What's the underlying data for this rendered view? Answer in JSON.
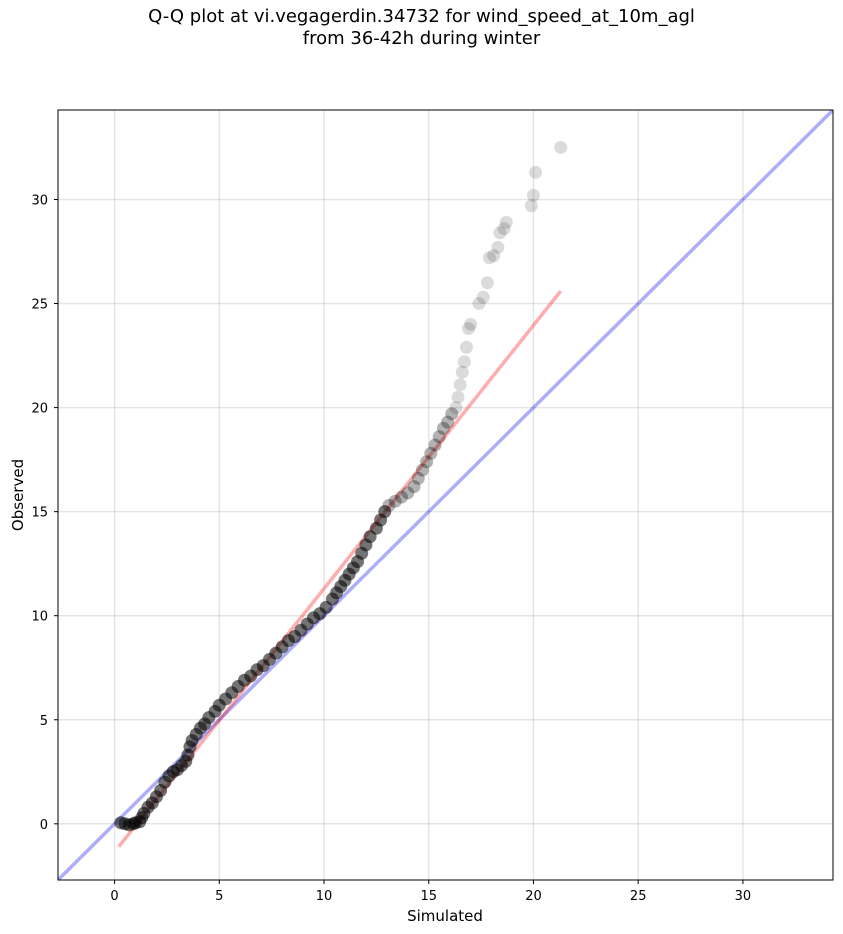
{
  "chart_data": {
    "type": "scatter",
    "title_line1": "Q-Q plot at vi.vegagerdin.34732 for wind_speed_at_10m_agl",
    "title_line2": "from 36-42h during winter",
    "xlabel": "Simulated",
    "ylabel": "Observed",
    "xlim": [
      -2.7,
      34.3
    ],
    "ylim": [
      -2.7,
      34.3
    ],
    "xticks": [
      0,
      5,
      10,
      15,
      20,
      25,
      30
    ],
    "yticks": [
      0,
      5,
      10,
      15,
      20,
      25,
      30
    ],
    "grid": true,
    "identity_line": {
      "color": "#0000ee",
      "opacity": 0.32
    },
    "fit_line": {
      "color": "#ff0000",
      "opacity": 0.32,
      "x": [
        0.2,
        21.3
      ],
      "y": [
        -1.1,
        25.6
      ]
    },
    "points_color": "#000000",
    "points": [
      [
        0.3,
        0.05
      ],
      [
        0.5,
        0.0
      ],
      [
        0.7,
        -0.05
      ],
      [
        0.9,
        0.0
      ],
      [
        1.0,
        0.05
      ],
      [
        1.2,
        0.1
      ],
      [
        1.3,
        0.3
      ],
      [
        1.4,
        0.5
      ],
      [
        1.6,
        0.8
      ],
      [
        1.8,
        1.0
      ],
      [
        2.0,
        1.3
      ],
      [
        2.2,
        1.6
      ],
      [
        2.4,
        2.0
      ],
      [
        2.6,
        2.3
      ],
      [
        2.8,
        2.5
      ],
      [
        3.0,
        2.6
      ],
      [
        3.2,
        2.8
      ],
      [
        3.4,
        3.0
      ],
      [
        3.5,
        3.3
      ],
      [
        3.6,
        3.7
      ],
      [
        3.7,
        4.0
      ],
      [
        3.9,
        4.3
      ],
      [
        4.1,
        4.6
      ],
      [
        4.3,
        4.8
      ],
      [
        4.5,
        5.1
      ],
      [
        4.8,
        5.4
      ],
      [
        5.0,
        5.7
      ],
      [
        5.3,
        6.0
      ],
      [
        5.6,
        6.3
      ],
      [
        5.9,
        6.6
      ],
      [
        6.2,
        6.9
      ],
      [
        6.5,
        7.1
      ],
      [
        6.8,
        7.4
      ],
      [
        7.1,
        7.6
      ],
      [
        7.4,
        7.9
      ],
      [
        7.7,
        8.2
      ],
      [
        8.0,
        8.5
      ],
      [
        8.3,
        8.8
      ],
      [
        8.6,
        9.0
      ],
      [
        8.9,
        9.3
      ],
      [
        9.2,
        9.6
      ],
      [
        9.5,
        9.9
      ],
      [
        9.8,
        10.1
      ],
      [
        10.1,
        10.4
      ],
      [
        10.4,
        10.8
      ],
      [
        10.6,
        11.1
      ],
      [
        10.8,
        11.4
      ],
      [
        11.0,
        11.7
      ],
      [
        11.2,
        12.0
      ],
      [
        11.4,
        12.3
      ],
      [
        11.6,
        12.6
      ],
      [
        11.8,
        13.0
      ],
      [
        12.0,
        13.4
      ],
      [
        12.2,
        13.8
      ],
      [
        12.5,
        14.2
      ],
      [
        12.7,
        14.6
      ],
      [
        12.9,
        15.0
      ],
      [
        13.1,
        15.3
      ],
      [
        13.4,
        15.5
      ],
      [
        13.7,
        15.7
      ],
      [
        14.0,
        15.9
      ],
      [
        14.3,
        16.2
      ],
      [
        14.5,
        16.6
      ],
      [
        14.7,
        17.0
      ],
      [
        14.9,
        17.4
      ],
      [
        15.1,
        17.8
      ],
      [
        15.3,
        18.2
      ],
      [
        15.5,
        18.6
      ],
      [
        15.7,
        19.0
      ],
      [
        15.9,
        19.3
      ],
      [
        16.1,
        19.7
      ],
      [
        16.3,
        20.0
      ],
      [
        16.4,
        20.5
      ],
      [
        16.5,
        21.1
      ],
      [
        16.6,
        21.7
      ],
      [
        16.7,
        22.2
      ],
      [
        16.8,
        22.9
      ],
      [
        16.9,
        23.8
      ],
      [
        17.0,
        24.0
      ],
      [
        17.4,
        25.0
      ],
      [
        17.6,
        25.3
      ],
      [
        17.8,
        26.0
      ],
      [
        17.9,
        27.2
      ],
      [
        18.1,
        27.3
      ],
      [
        18.3,
        27.7
      ],
      [
        18.4,
        28.4
      ],
      [
        18.6,
        28.6
      ],
      [
        18.7,
        28.9
      ],
      [
        19.9,
        29.7
      ],
      [
        20.0,
        30.2
      ],
      [
        20.1,
        31.3
      ],
      [
        21.3,
        32.5
      ]
    ]
  }
}
